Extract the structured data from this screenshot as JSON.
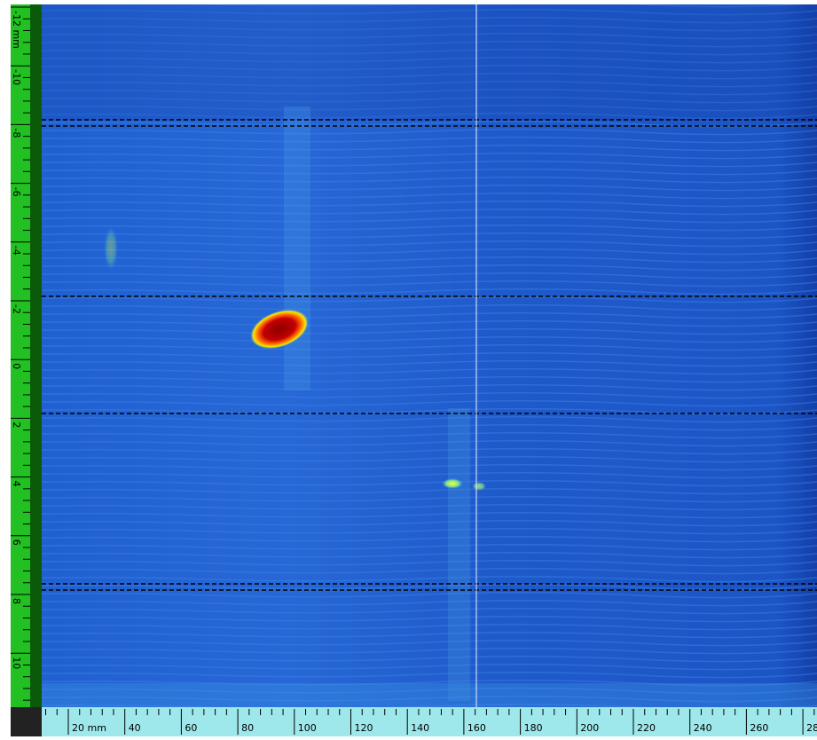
{
  "vertical_ruler": {
    "labels": [
      "-12 mm",
      "-10",
      "-8",
      "-6",
      "-4",
      "-2",
      "0",
      "2",
      "4",
      "6",
      "8",
      "10"
    ]
  },
  "horizontal_ruler": {
    "labels": [
      "20 mm",
      "40",
      "60",
      "80",
      "100",
      "120",
      "140",
      "160",
      "180",
      "200",
      "220",
      "240",
      "260",
      "28"
    ]
  }
}
